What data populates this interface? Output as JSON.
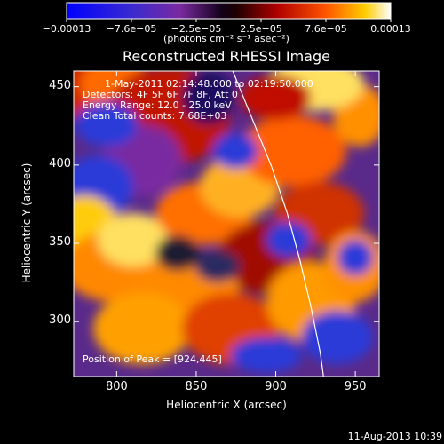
{
  "chart_data": {
    "type": "heatmap",
    "title": "Reconstructed RHESSI Image",
    "xlabel": "Heliocentric X (arcsec)",
    "ylabel": "Heliocentric Y (arcsec)",
    "xlim": [
      773,
      965
    ],
    "ylim": [
      265,
      460
    ],
    "xticks": [
      800,
      850,
      900,
      950
    ],
    "yticks": [
      300,
      350,
      400,
      450
    ],
    "colorbar": {
      "tick_labels": [
        "−0.00013",
        "−7.6e−05",
        "−2.5e−05",
        "2.5e−05",
        "7.6e−05",
        "0.00013"
      ],
      "unit_label": "(photons cm⁻² s⁻¹ asec⁻²)",
      "range": [
        -0.00013,
        0.00013
      ]
    },
    "annotations": {
      "time_range": "1-May-2011 02:14:48.000 to 02:19:50.000",
      "detectors": "Detectors: 4F 5F 6F 7F 8F, Att 0",
      "energy_range": "Energy Range: 12.0 - 25.0 keV",
      "algorithm": "Clean     Total counts: 7.68E+03",
      "peak": "Position of Peak = [924,445]"
    },
    "limb_curve": [
      [
        873,
        460
      ],
      [
        885,
        430
      ],
      [
        897,
        400
      ],
      [
        907,
        370
      ],
      [
        915,
        340
      ],
      [
        922,
        310
      ],
      [
        928,
        280
      ],
      [
        930,
        265
      ]
    ],
    "peak_position": [
      924,
      445
    ],
    "footer_date": "11-Aug-2013 10:39"
  },
  "colors": {
    "background": "#000000",
    "limb": "#ffffff"
  }
}
